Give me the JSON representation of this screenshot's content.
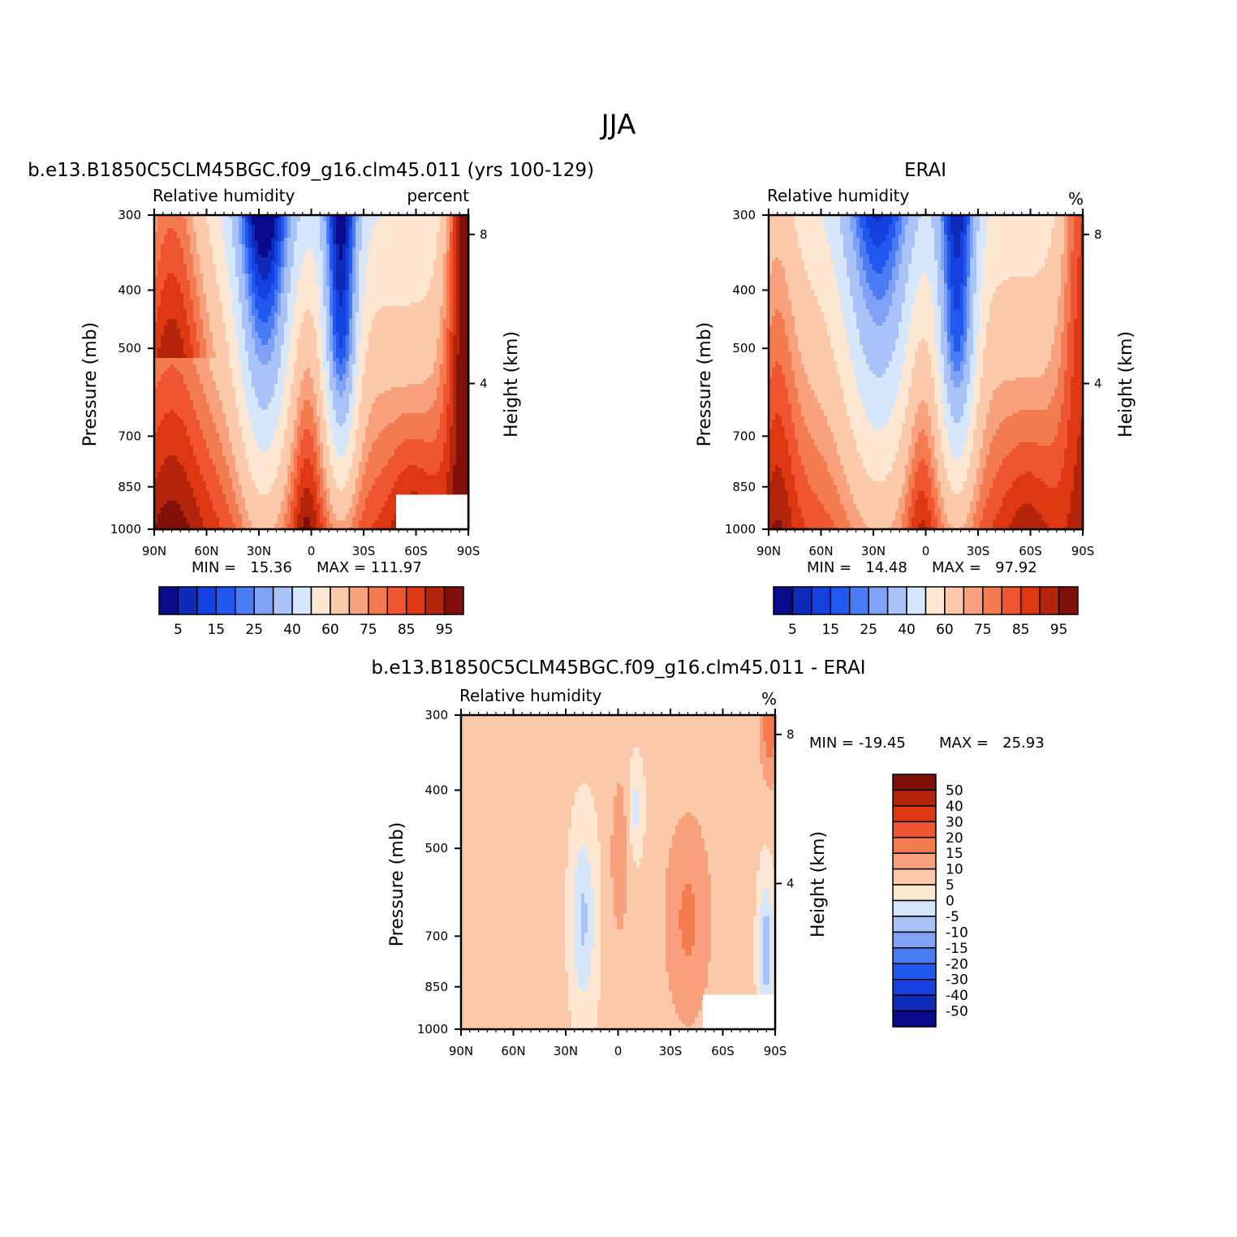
{
  "figure": {
    "title": "JJA",
    "panels": [
      {
        "title": "b.e13.B1850C5CLM45BGC.f09_g16.clm45.011 (yrs 100-129)",
        "left_label": "Relative humidity",
        "right_label": "percent",
        "min_text": "MIN =   15.36",
        "max_text": "MAX = 111.97"
      },
      {
        "title": "ERAI",
        "left_label": "Relative humidity",
        "right_label": "%",
        "min_text": "MIN =   14.48",
        "max_text": "MAX =   97.92"
      },
      {
        "title": "b.e13.B1850C5CLM45BGC.f09_g16.clm45.011 - ERAI",
        "left_label": "Relative humidity",
        "right_label": "%",
        "min_text": "MIN = -19.45",
        "max_text": "MAX =   25.93"
      }
    ],
    "colorbars": {
      "absolute": {
        "colors": [
          "#0a0a8c",
          "#0d2ab8",
          "#1440e0",
          "#2158f0",
          "#4a7cf5",
          "#7fa2f7",
          "#a9c3f8",
          "#d6e6fb",
          "#fde6d2",
          "#fccaaa",
          "#f9a07d",
          "#f47a50",
          "#ee5530",
          "#dd3812",
          "#b4240a",
          "#801009"
        ],
        "labels": [
          "5",
          "15",
          "25",
          "40",
          "60",
          "75",
          "85",
          "95"
        ]
      },
      "difference": {
        "colors": [
          "#0a0a8c",
          "#0d2ab8",
          "#1440e0",
          "#2158f0",
          "#4a7cf5",
          "#7fa2f7",
          "#a9c3f8",
          "#d6e6fb",
          "#fde6d2",
          "#fccaaa",
          "#f9a07d",
          "#f47a50",
          "#ee5530",
          "#dd3812",
          "#b4240a",
          "#801009"
        ],
        "labels": [
          "50",
          "40",
          "30",
          "20",
          "15",
          "10",
          "5",
          "0",
          "-5",
          "-10",
          "-15",
          "-20",
          "-30",
          "-40",
          "-50"
        ]
      }
    }
  },
  "chart_data": [
    {
      "type": "heatmap",
      "title": "b.e13.B1850C5CLM45BGC.f09_g16.clm45.011 (yrs 100-129)",
      "field": "Relative humidity",
      "units": "percent",
      "xlabel": "",
      "ylabel": "Pressure (mb)",
      "y2label": "Height (km)",
      "x_ticks": [
        "90N",
        "60N",
        "30N",
        "0",
        "30S",
        "60S",
        "90S"
      ],
      "y_ticks": [
        "300",
        "400",
        "500",
        "700",
        "850",
        "1000"
      ],
      "y2_ticks": [
        "8",
        "4"
      ],
      "x_range": [
        90,
        -90
      ],
      "y_range": [
        1000,
        300
      ],
      "y_scale": "log",
      "levels": [
        5,
        10,
        15,
        20,
        25,
        30,
        40,
        50,
        60,
        70,
        75,
        80,
        85,
        90,
        95
      ],
      "min": 15.36,
      "max": 111.97,
      "grid": false
    },
    {
      "type": "heatmap",
      "title": "ERAI",
      "field": "Relative humidity",
      "units": "%",
      "xlabel": "",
      "ylabel": "Pressure (mb)",
      "y2label": "Height (km)",
      "x_ticks": [
        "90N",
        "60N",
        "30N",
        "0",
        "30S",
        "60S",
        "90S"
      ],
      "y_ticks": [
        "300",
        "400",
        "500",
        "700",
        "850",
        "1000"
      ],
      "y2_ticks": [
        "8",
        "4"
      ],
      "x_range": [
        90,
        -90
      ],
      "y_range": [
        1000,
        300
      ],
      "y_scale": "log",
      "levels": [
        5,
        10,
        15,
        20,
        25,
        30,
        40,
        50,
        60,
        70,
        75,
        80,
        85,
        90,
        95
      ],
      "min": 14.48,
      "max": 97.92,
      "grid": false
    },
    {
      "type": "heatmap",
      "title": "b.e13.B1850C5CLM45BGC.f09_g16.clm45.011 - ERAI",
      "field": "Relative humidity",
      "units": "%",
      "xlabel": "",
      "ylabel": "Pressure (mb)",
      "y2label": "Height (km)",
      "x_ticks": [
        "90N",
        "60N",
        "30N",
        "0",
        "30S",
        "60S",
        "90S"
      ],
      "y_ticks": [
        "300",
        "400",
        "500",
        "700",
        "850",
        "1000"
      ],
      "y2_ticks": [
        "8",
        "4"
      ],
      "x_range": [
        90,
        -90
      ],
      "y_range": [
        1000,
        300
      ],
      "y_scale": "log",
      "levels": [
        -50,
        -40,
        -30,
        -20,
        -15,
        -10,
        -5,
        0,
        5,
        10,
        15,
        20,
        30,
        40,
        50
      ],
      "min": -19.45,
      "max": 25.93,
      "grid": false
    }
  ]
}
